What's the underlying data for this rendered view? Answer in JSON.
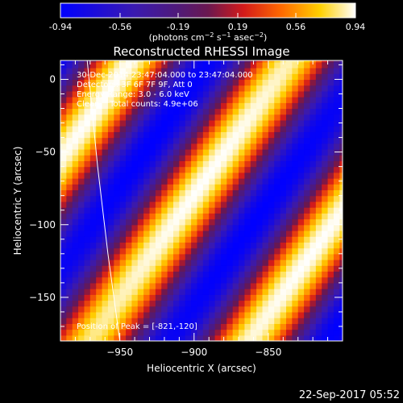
{
  "colorbar": {
    "ticks": [
      "-0.94",
      "-0.56",
      "-0.19",
      "0.19",
      "0.56",
      "0.94"
    ],
    "tick_values": [
      -0.94,
      -0.56,
      -0.19,
      0.19,
      0.56,
      0.94
    ],
    "range": [
      -0.94,
      0.94
    ],
    "units_html": "(photons cm⁻² s⁻¹ asec⁻²)"
  },
  "chart_data": {
    "type": "heatmap",
    "title": "Reconstructed RHESSI Image",
    "xlabel": "Heliocentric X (arcsec)",
    "ylabel": "Heliocentric Y (arcsec)",
    "xlim": [
      -990,
      -800
    ],
    "ylim": [
      -180,
      13
    ],
    "x_ticks": [
      -950,
      -900,
      -850
    ],
    "x_tick_labels": [
      "−950",
      "−900",
      "−850"
    ],
    "y_ticks": [
      0,
      -50,
      -100,
      -150
    ],
    "y_tick_labels": [
      "0",
      "−50",
      "−100",
      "−150"
    ],
    "colormap": "rhessi-ct3",
    "pixel_size_arcsec": 4,
    "fringe": {
      "amplitude": 0.94,
      "direction_deg": 55,
      "period_arcsec": 88,
      "peak": [
        -821,
        -120
      ]
    },
    "limb_curve": [
      [
        -972,
        13
      ],
      [
        -965,
        -60
      ],
      [
        -958,
        -120
      ],
      [
        -950,
        -180
      ]
    ],
    "annotations": {
      "time_line": "30-Dec-2014 23:47:04.000 to 23:47:04.000",
      "detectors_line": "Detectors: 3F 6F 7F 9F, Att 0",
      "energy_line": "Energy Range: 3.0 - 6.0 keV",
      "clean_line": "Clean    Total counts: 4.9e+06",
      "peak_line": "Position of Peak = [-821,-120]"
    }
  },
  "footer": {
    "timestamp": "22-Sep-2017 05:52"
  },
  "colors": {
    "background": "#000000",
    "text": "#ffffff"
  }
}
